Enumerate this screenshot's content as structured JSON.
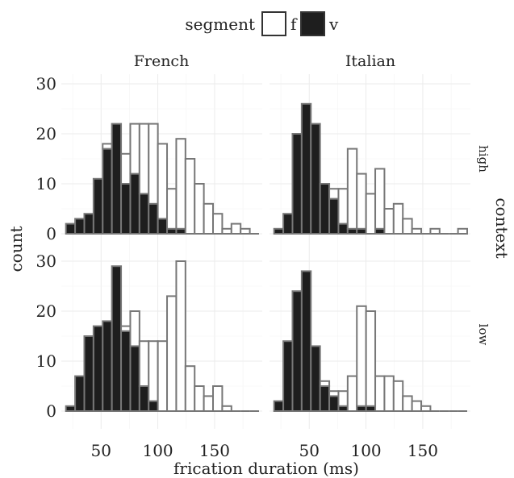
{
  "chart_data": {
    "type": "bar",
    "stacked": true,
    "xlabel": "frication duration (ms)",
    "ylabel": "count",
    "facet_row_title": "context",
    "xlim": [
      15,
      192
    ],
    "ylim": [
      0,
      30
    ],
    "x_ticks": [
      50,
      100,
      150
    ],
    "y_ticks": [
      0,
      10,
      20,
      30
    ],
    "bin_width": 8.1,
    "grid": true,
    "legend": {
      "title": "segment",
      "position": "top",
      "entries": [
        {
          "key": "f",
          "label": "f",
          "color": "#ffffff"
        },
        {
          "key": "v",
          "label": "v",
          "color": "#1e1e1e"
        }
      ]
    },
    "columns": [
      "French",
      "Italian"
    ],
    "rows": [
      "high",
      "low"
    ],
    "panels": [
      {
        "column": "French",
        "row": "high",
        "bin_centers": [
          23.1,
          31.2,
          39.3,
          47.4,
          55.5,
          63.6,
          71.7,
          79.8,
          87.9,
          96,
          104.1,
          112.2,
          120.3,
          128.4,
          136.5,
          144.6,
          152.7,
          160.8,
          168.9,
          177,
          185.1
        ],
        "series": [
          {
            "name": "f",
            "values": [
              0,
              0,
              0,
              0,
              1,
              0,
              6,
              10,
              14,
              16,
              15,
              8,
              18,
              15,
              10,
              6,
              4,
              1,
              2,
              1,
              0
            ]
          },
          {
            "name": "v",
            "values": [
              2,
              3,
              4,
              11,
              17,
              22,
              10,
              12,
              8,
              6,
              3,
              1,
              1,
              0,
              0,
              0,
              0,
              0,
              0,
              0,
              0
            ]
          }
        ]
      },
      {
        "column": "Italian",
        "row": "high",
        "bin_centers": [
          23.1,
          31.2,
          39.3,
          47.4,
          55.5,
          63.6,
          71.7,
          79.8,
          87.9,
          96,
          104.1,
          112.2,
          120.3,
          128.4,
          136.5,
          144.6,
          152.7,
          160.8,
          168.9,
          177,
          185.1
        ],
        "series": [
          {
            "name": "f",
            "values": [
              0,
              0,
              0,
              0,
              0,
              0,
              2,
              7,
              16,
              11,
              8,
              12,
              5,
              6,
              3,
              1,
              0,
              1,
              0,
              0,
              1
            ]
          },
          {
            "name": "v",
            "values": [
              1,
              4,
              20,
              26,
              22,
              10,
              7,
              2,
              1,
              1,
              0,
              1,
              0,
              0,
              0,
              0,
              0,
              0,
              0,
              0,
              0
            ]
          }
        ]
      },
      {
        "column": "French",
        "row": "low",
        "bin_centers": [
          23.1,
          31.2,
          39.3,
          47.4,
          55.5,
          63.6,
          71.7,
          79.8,
          87.9,
          96,
          104.1,
          112.2,
          120.3,
          128.4,
          136.5,
          144.6,
          152.7,
          160.8,
          168.9,
          177,
          185.1
        ],
        "series": [
          {
            "name": "f",
            "values": [
              0,
              0,
              0,
              0,
              0,
              0,
              1,
              7,
              9,
              12,
              14,
              23,
              30,
              9,
              5,
              3,
              5,
              1,
              0,
              0,
              0
            ]
          },
          {
            "name": "v",
            "values": [
              1,
              7,
              15,
              17,
              18,
              29,
              16,
              13,
              5,
              2,
              0,
              0,
              0,
              0,
              0,
              0,
              0,
              0,
              0,
              0,
              0
            ]
          }
        ]
      },
      {
        "column": "Italian",
        "row": "low",
        "bin_centers": [
          23.1,
          31.2,
          39.3,
          47.4,
          55.5,
          63.6,
          71.7,
          79.8,
          87.9,
          96,
          104.1,
          112.2,
          120.3,
          128.4,
          136.5,
          144.6,
          152.7,
          160.8,
          168.9,
          177,
          185.1
        ],
        "series": [
          {
            "name": "f",
            "values": [
              0,
              0,
              0,
              0,
              0,
              1,
              1,
              3,
              7,
              20,
              19,
              7,
              7,
              6,
              3,
              2,
              1,
              0,
              0,
              0,
              0
            ]
          },
          {
            "name": "v",
            "values": [
              2,
              14,
              24,
              28,
              13,
              5,
              3,
              1,
              0,
              1,
              1,
              0,
              0,
              0,
              0,
              0,
              0,
              0,
              0,
              0,
              0
            ]
          }
        ]
      }
    ]
  }
}
